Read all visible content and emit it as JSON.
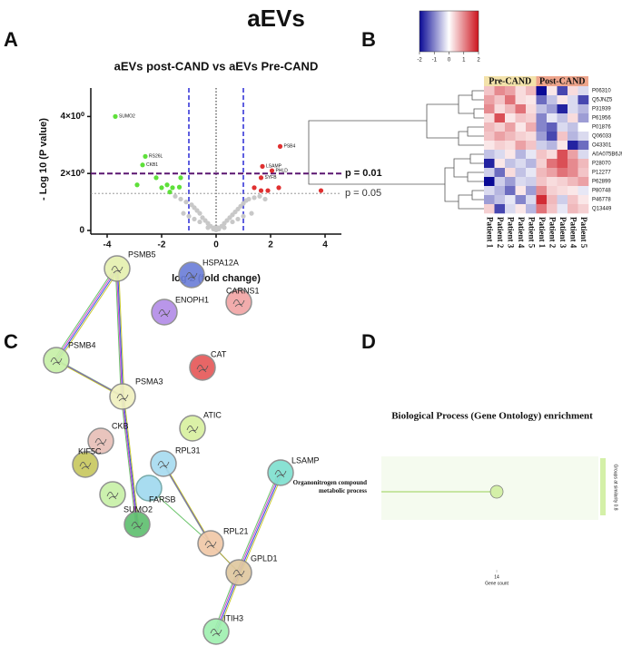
{
  "title": "aEVs",
  "panel_letters": [
    "A",
    "B",
    "C",
    "D"
  ],
  "chart_data": [
    {
      "type": "scatter",
      "title": "aEVs post-CAND vs aEVs Pre-CAND",
      "xlabel": "log 2 (fold change)",
      "ylabel": "- Log 10 (P value)",
      "xlim": [
        -4.6,
        4.6
      ],
      "xticks": [
        -4,
        -2,
        0,
        2,
        4
      ],
      "ylim": [
        0,
        5
      ],
      "yticks": [
        0,
        {
          "value": 2,
          "label": "2×10⁰"
        },
        {
          "value": 4,
          "label": "4×10⁰"
        }
      ],
      "hlines": [
        {
          "value": 2,
          "label": "p = 0.01",
          "color": "#5a1670"
        },
        {
          "value": 1.3,
          "label": "p = 0.05",
          "color": "#8a8a8a"
        }
      ],
      "vlines": [
        {
          "value": -1,
          "color": "#2a2ad6"
        },
        {
          "value": 1,
          "color": "#2a2ad6"
        },
        {
          "value": 0,
          "color": "#222222"
        }
      ],
      "series": [
        {
          "color": "#c8c8c8",
          "x": [
            -1.5,
            -1.3,
            -1.1,
            -0.9,
            -0.8,
            -0.7,
            -0.6,
            -0.5,
            -0.4,
            -0.3,
            -0.2,
            -0.1,
            0,
            0.1,
            0.2,
            0.3,
            0.4,
            0.5,
            0.6,
            0.7,
            0.8,
            0.9,
            1.0,
            1.1,
            1.2,
            1.4,
            1.6,
            -1.0,
            -0.6,
            -0.3,
            0.3,
            0.6,
            1.0,
            -0.8,
            0.8,
            -1.2,
            1.3,
            0.05,
            -0.05,
            1.8
          ],
          "values": [
            1.2,
            1.1,
            1.0,
            0.9,
            0.8,
            0.7,
            0.6,
            0.45,
            0.35,
            0.25,
            0.15,
            0.05,
            0.02,
            0.05,
            0.15,
            0.25,
            0.35,
            0.45,
            0.55,
            0.65,
            0.75,
            0.85,
            0.95,
            1.05,
            1.1,
            1.15,
            1.2,
            0.5,
            0.3,
            0.1,
            0.1,
            0.3,
            0.5,
            0.4,
            0.4,
            0.6,
            0.6,
            0.1,
            0.1,
            1.1
          ]
        },
        {
          "color": "#5ee03a",
          "x": [
            -3.7,
            -2.6,
            -2.7,
            -2.2,
            -2.9,
            -1.8,
            -2.0,
            -1.6,
            -1.35,
            -1.3,
            -1.7
          ],
          "values": [
            4.0,
            2.6,
            2.3,
            1.85,
            1.6,
            1.6,
            1.5,
            1.5,
            1.52,
            1.85,
            1.35
          ],
          "labels": [
            "SUMO2",
            "RS26L",
            "CKB1",
            null,
            null,
            null,
            null,
            null,
            null,
            null,
            null
          ]
        },
        {
          "color": "#e03030",
          "x": [
            2.35,
            1.7,
            1.65,
            2.05,
            1.4,
            1.9,
            2.3,
            3.85,
            1.65
          ],
          "values": [
            2.95,
            2.25,
            1.85,
            2.1,
            1.5,
            1.4,
            1.5,
            1.4,
            1.4
          ],
          "labels": [
            "PSB4",
            "LSAMP",
            "SYFB",
            "PHLD",
            null,
            null,
            null,
            null,
            null
          ]
        }
      ]
    },
    {
      "type": "heatmap",
      "rows": [
        "P06310",
        "Q5JNZ5",
        "P31939",
        "P61956",
        "P01876",
        "Q06033",
        "O43301",
        "A0A075B6J9",
        "P28070",
        "P12277",
        "P62899",
        "P80748",
        "P46778",
        "Q13449"
      ],
      "columns": [
        "Patient 1",
        "Patient 2",
        "Patient 3",
        "Patient 4",
        "Patient 5",
        "Patient 1",
        "Patient 2",
        "Patient 3",
        "Patient 4",
        "Patient 5"
      ],
      "groups": [
        {
          "name": "Pre-CAND",
          "color": "#f3e2aa"
        },
        {
          "name": "Post-CAND",
          "color": "#eea58c"
        }
      ],
      "zlim": [
        -2,
        2
      ],
      "zticks": [
        -2,
        -1,
        0,
        1,
        2
      ],
      "values": [
        [
          0.5,
          1.0,
          0.8,
          0.3,
          0.6,
          -2,
          0.2,
          -1.5,
          0.3,
          -0.3
        ],
        [
          0.8,
          0.5,
          1.2,
          0.3,
          0.2,
          -1.2,
          -0.5,
          0.2,
          -0.3,
          -1.5
        ],
        [
          1.0,
          0.3,
          0.6,
          1.2,
          0.3,
          -0.5,
          -0.8,
          -1.8,
          -0.3,
          -0.6
        ],
        [
          0.3,
          1.5,
          0.2,
          0.5,
          0.4,
          -1.0,
          -0.2,
          -0.5,
          0.3,
          -0.8
        ],
        [
          0.6,
          0.4,
          0.8,
          0.2,
          0.7,
          -1.0,
          -1.3,
          -0.3,
          -0.5,
          0.0
        ],
        [
          0.5,
          0.8,
          0.6,
          0.4,
          0.3,
          -0.8,
          -1.5,
          0.5,
          -0.6,
          -0.3
        ],
        [
          0.2,
          0.4,
          0.3,
          0.8,
          0.5,
          -0.4,
          -0.6,
          0.2,
          -1.8,
          -1.2
        ],
        [
          -0.5,
          -0.3,
          0.2,
          -0.6,
          -0.2,
          0.5,
          0.3,
          1.5,
          0.8,
          -0.3
        ],
        [
          -1.8,
          0.2,
          -0.5,
          -0.3,
          -0.6,
          0.4,
          1.2,
          1.5,
          1.0,
          0.6
        ],
        [
          -0.4,
          -1.2,
          0.3,
          -0.5,
          -0.2,
          0.6,
          0.8,
          1.2,
          1.0,
          0.5
        ],
        [
          -2.0,
          -0.4,
          -0.8,
          -0.3,
          -0.4,
          0.5,
          0.3,
          0.4,
          0.6,
          0.8
        ],
        [
          -0.3,
          -0.6,
          -1.2,
          0.2,
          -0.8,
          1.0,
          0.4,
          0.3,
          0.2,
          -0.2
        ],
        [
          -0.8,
          -0.5,
          -0.2,
          -1.0,
          -0.3,
          1.8,
          0.6,
          -0.4,
          0.5,
          0.2
        ],
        [
          0.4,
          -1.5,
          -0.3,
          0.2,
          -0.6,
          1.2,
          0.5,
          -0.2,
          0.6,
          0.4
        ]
      ]
    },
    {
      "type": "dot",
      "title": "Biological Process (Gene Ontology) enrichment",
      "categories": [
        "Organonitrogen compound metabolic process"
      ],
      "values": [
        14
      ],
      "xlabel": "Gene count",
      "xlim": [
        0,
        27
      ],
      "xticks": [
        14
      ],
      "color": "#d4f0a8",
      "legend_title": "Groups at similarity 0.8"
    }
  ],
  "network": {
    "nodes": [
      "PSMB5",
      "HSPA12A",
      "ENOPH1",
      "CARNS1",
      "PSMB4",
      "PSMA3",
      "CAT",
      "ATIC",
      "CKB",
      "KIF5C",
      "RPL31",
      "FARSB",
      "SUMO2",
      "RPL21",
      "LSAMP",
      "GPLD1",
      "ITIH3"
    ]
  }
}
